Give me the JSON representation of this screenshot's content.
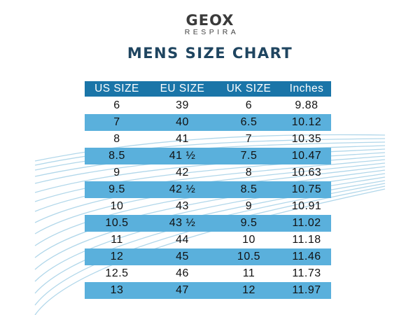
{
  "brand": {
    "name": "GEOX",
    "tagline": "RESPIRA"
  },
  "title": "MENS SIZE CHART",
  "colors": {
    "header_bg": "#1a75a8",
    "shaded_row": "#5ab0dc",
    "title": "#1f4560",
    "wave": "#a9d3e8"
  },
  "table": {
    "columns": [
      "US SIZE",
      "EU SIZE",
      "UK SIZE",
      "Inches"
    ],
    "rows": [
      [
        "6",
        "39",
        "6",
        "9.88"
      ],
      [
        "7",
        "40",
        "6.5",
        "10.12"
      ],
      [
        "8",
        "41",
        "7",
        "10.35"
      ],
      [
        "8.5",
        "41 ½",
        "7.5",
        "10.47"
      ],
      [
        "9",
        "42",
        "8",
        "10.63"
      ],
      [
        "9.5",
        "42 ½",
        "8.5",
        "10.75"
      ],
      [
        "10",
        "43",
        "9",
        "10.91"
      ],
      [
        "10.5",
        "43 ½",
        "9.5",
        "11.02"
      ],
      [
        "11",
        "44",
        "10",
        "11.18"
      ],
      [
        "12",
        "45",
        "10.5",
        "11.46"
      ],
      [
        "12.5",
        "46",
        "11",
        "11.73"
      ],
      [
        "13",
        "47",
        "12",
        "11.97"
      ]
    ]
  },
  "chart_data": {
    "type": "table",
    "title": "MENS SIZE CHART",
    "columns": [
      "US SIZE",
      "EU SIZE",
      "UK SIZE",
      "Inches"
    ],
    "rows": [
      [
        "6",
        "39",
        "6",
        "9.88"
      ],
      [
        "7",
        "40",
        "6.5",
        "10.12"
      ],
      [
        "8",
        "41",
        "7",
        "10.35"
      ],
      [
        "8.5",
        "41 ½",
        "7.5",
        "10.47"
      ],
      [
        "9",
        "42",
        "8",
        "10.63"
      ],
      [
        "9.5",
        "42 ½",
        "8.5",
        "10.75"
      ],
      [
        "10",
        "43",
        "9",
        "10.91"
      ],
      [
        "10.5",
        "43 ½",
        "9.5",
        "11.02"
      ],
      [
        "11",
        "44",
        "10",
        "11.18"
      ],
      [
        "12",
        "45",
        "10.5",
        "11.46"
      ],
      [
        "12.5",
        "46",
        "11",
        "11.73"
      ],
      [
        "13",
        "47",
        "12",
        "11.97"
      ]
    ]
  }
}
